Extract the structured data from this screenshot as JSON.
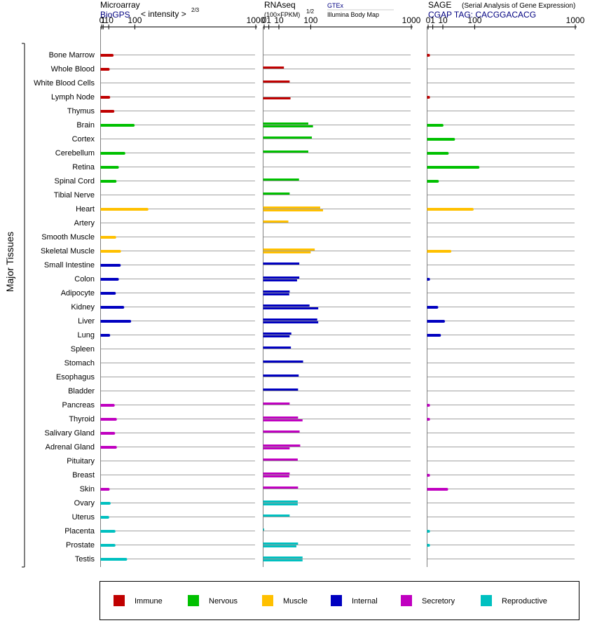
{
  "y_axis_label": "Major Tissues",
  "panels": [
    {
      "id": "microarray",
      "title": "Microarray",
      "source": "BioGPS",
      "scale_label": "< intensity >",
      "scale_exponent": "2/3",
      "tick_labels": [
        "0",
        "1",
        "10",
        "100",
        "1000"
      ]
    },
    {
      "id": "rnaseq",
      "title": "RNAseq",
      "scale_label": "(100×FPKM)",
      "scale_exponent": "1/2",
      "source_top": "GTEx",
      "source_bottom": "Illumina Body Map",
      "tick_labels": [
        "0",
        "1",
        "10",
        "100",
        "1000"
      ]
    },
    {
      "id": "sage",
      "title": "SAGE",
      "subtitle": "(Serial Analysis of Gene Expression)",
      "tag": "CGAP TAG: CACGGACACG",
      "tick_labels": [
        "0",
        "1",
        "10",
        "100",
        "1000"
      ]
    }
  ],
  "legend": [
    {
      "label": "Immune",
      "color": "#c00000"
    },
    {
      "label": "Nervous",
      "color": "#00c000"
    },
    {
      "label": "Muscle",
      "color": "#ffc000"
    },
    {
      "label": "Internal",
      "color": "#0000c0"
    },
    {
      "label": "Secretory",
      "color": "#c000c0"
    },
    {
      "label": "Reproductive",
      "color": "#00c0c0"
    }
  ],
  "chart_data": {
    "type": "bar",
    "orientation": "horizontal",
    "x_scale": "power",
    "xlim": [
      0,
      1000
    ],
    "categories": [
      "Bone Marrow",
      "Whole Blood",
      "White Blood Cells",
      "Lymph Node",
      "Thymus",
      "Brain",
      "Cortex",
      "Cerebellum",
      "Retina",
      "Spinal Cord",
      "Tibial Nerve",
      "Heart",
      "Artery",
      "Smooth Muscle",
      "Skeletal Muscle",
      "Small Intestine",
      "Colon",
      "Adipocyte",
      "Kidney",
      "Liver",
      "Lung",
      "Spleen",
      "Stomach",
      "Esophagus",
      "Bladder",
      "Pancreas",
      "Thyroid",
      "Salivary Gland",
      "Adrenal Gland",
      "Pituitary",
      "Breast",
      "Skin",
      "Ovary",
      "Uterus",
      "Placenta",
      "Prostate",
      "Testis"
    ],
    "groups": [
      "Immune",
      "Immune",
      "Immune",
      "Immune",
      "Immune",
      "Nervous",
      "Nervous",
      "Nervous",
      "Nervous",
      "Nervous",
      "Nervous",
      "Muscle",
      "Muscle",
      "Muscle",
      "Muscle",
      "Internal",
      "Internal",
      "Internal",
      "Internal",
      "Internal",
      "Internal",
      "Internal",
      "Internal",
      "Internal",
      "Internal",
      "Secretory",
      "Secretory",
      "Secretory",
      "Secretory",
      "Secretory",
      "Secretory",
      "Secretory",
      "Reproductive",
      "Reproductive",
      "Reproductive",
      "Reproductive",
      "Reproductive"
    ],
    "series": [
      {
        "name": "Microarray",
        "values": [
          18,
          9,
          null,
          10,
          20,
          93,
          null,
          55,
          33,
          26,
          null,
          160,
          null,
          25,
          40,
          39,
          33,
          24,
          51,
          78,
          10,
          null,
          null,
          null,
          null,
          21,
          27,
          22,
          27,
          null,
          null,
          9,
          11,
          8,
          23,
          23,
          62
        ]
      },
      {
        "name": "GTEx",
        "values": [
          null,
          18,
          30,
          null,
          null,
          90,
          105,
          90,
          null,
          56,
          30,
          145,
          27,
          null,
          118,
          57,
          57,
          30,
          95,
          130,
          34,
          33,
          70,
          55,
          53,
          30,
          53,
          58,
          60,
          52,
          30,
          53,
          52,
          30,
          0,
          53,
          68
        ]
      },
      {
        "name": "Illumina Body Map",
        "values": [
          null,
          null,
          null,
          32,
          null,
          110,
          null,
          null,
          null,
          null,
          null,
          160,
          null,
          null,
          100,
          null,
          50,
          29,
          135,
          135,
          30,
          null,
          null,
          null,
          null,
          null,
          68,
          null,
          30,
          null,
          29,
          null,
          52,
          null,
          null,
          48,
          68
        ]
      },
      {
        "name": "SAGE",
        "values": [
          0.01,
          null,
          null,
          0.01,
          null,
          9,
          30,
          17,
          115,
          4,
          null,
          90,
          null,
          null,
          22,
          null,
          0.01,
          null,
          3.5,
          11,
          6,
          null,
          null,
          null,
          null,
          0.01,
          0.01,
          null,
          null,
          null,
          0.01,
          16,
          null,
          null,
          0.01,
          0.01,
          null
        ]
      }
    ]
  }
}
